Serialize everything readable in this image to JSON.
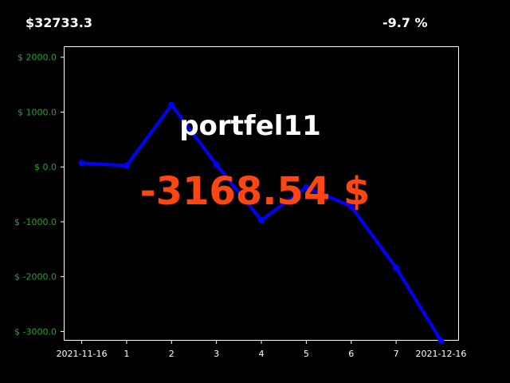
{
  "header": {
    "total_value": "$32733.3",
    "change_percent": "-9.7 %"
  },
  "overlay": {
    "portfolio_name": "portfel11",
    "pnl_text": "-3168.54 $"
  },
  "colors": {
    "background": "#000000",
    "line": "#0000ff",
    "ytick_text": "#2ca02c",
    "xtick_text": "#ffffff",
    "frame": "#ffffff",
    "title_text": "#ffffff",
    "pnl_text": "#ff4512"
  },
  "chart_data": {
    "type": "line",
    "x": [
      0,
      1,
      2,
      3,
      4,
      5,
      6,
      7,
      8
    ],
    "x_tick_labels": [
      "2021-11-16",
      "1",
      "2",
      "3",
      "4",
      "5",
      "6",
      "7",
      "2021-12-16"
    ],
    "series": [
      {
        "values": [
          70,
          25,
          1130,
          40,
          -970,
          -370,
          -720,
          -1840,
          -3168.54
        ]
      }
    ],
    "y_ticks": [
      2000,
      1000,
      0,
      -1000,
      -2000,
      -3000
    ],
    "y_tick_labels": [
      "$ 2000.0",
      "$ 1000.0",
      "$ 0.0",
      "$ -1000.0",
      "$ -2000.0",
      "$ -3000.0"
    ],
    "xlim": [
      -0.4,
      8.4
    ],
    "ylim": [
      -3168.54,
      2200
    ],
    "grid": false,
    "legend": "none",
    "title": "",
    "xlabel": "",
    "ylabel": ""
  }
}
